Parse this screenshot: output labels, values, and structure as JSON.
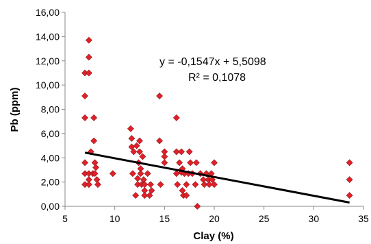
{
  "chart_data": {
    "type": "scatter",
    "xlabel": "Clay (%)",
    "ylabel": "Pb (ppm)",
    "xlim": [
      5,
      35
    ],
    "ylim": [
      0,
      16
    ],
    "x_ticks": [
      "5",
      "10",
      "15",
      "20",
      "25",
      "30",
      "35"
    ],
    "y_ticks": [
      "0,00",
      "2,00",
      "4,00",
      "6,00",
      "8,00",
      "10,00",
      "12,00",
      "14,00",
      "16,00"
    ],
    "grid": false,
    "legend": "none",
    "marker_color": "#e2202a",
    "marker_edge_color": "#8b1a1a",
    "series": [
      {
        "points": [
          [
            7.0,
            9.1
          ],
          [
            7.0,
            7.3
          ],
          [
            7.0,
            3.6
          ],
          [
            7.0,
            2.7
          ],
          [
            7.0,
            1.8
          ],
          [
            7.0,
            11.0
          ],
          [
            7.4,
            13.7
          ],
          [
            7.4,
            12.3
          ],
          [
            7.4,
            11.0
          ],
          [
            7.4,
            2.7
          ],
          [
            7.4,
            2.2
          ],
          [
            7.4,
            1.8
          ],
          [
            7.6,
            4.5
          ],
          [
            7.8,
            2.7
          ],
          [
            7.9,
            5.4
          ],
          [
            7.9,
            7.3
          ],
          [
            8.0,
            3.6
          ],
          [
            8.0,
            2.7
          ],
          [
            8.1,
            3.2
          ],
          [
            8.2,
            2.2
          ],
          [
            8.3,
            1.8
          ],
          [
            9.8,
            2.7
          ],
          [
            11.6,
            6.4
          ],
          [
            11.7,
            5.6
          ],
          [
            11.7,
            4.9
          ],
          [
            11.8,
            2.7
          ],
          [
            11.9,
            4.5
          ],
          [
            12.1,
            0.9
          ],
          [
            12.2,
            5.0
          ],
          [
            12.3,
            2.3
          ],
          [
            12.3,
            1.8
          ],
          [
            12.4,
            3.6
          ],
          [
            12.5,
            5.4
          ],
          [
            12.5,
            4.5
          ],
          [
            12.6,
            3.1
          ],
          [
            12.6,
            2.7
          ],
          [
            12.7,
            1.8
          ],
          [
            12.8,
            4.1
          ],
          [
            12.9,
            2.2
          ],
          [
            13.0,
            1.8
          ],
          [
            13.0,
            1.3
          ],
          [
            13.0,
            0.9
          ],
          [
            13.3,
            2.7
          ],
          [
            13.5,
            0.9
          ],
          [
            13.6,
            1.8
          ],
          [
            13.7,
            1.3
          ],
          [
            14.5,
            9.1
          ],
          [
            14.5,
            5.4
          ],
          [
            14.6,
            1.8
          ],
          [
            15.0,
            4.5
          ],
          [
            15.0,
            3.6
          ],
          [
            15.0,
            4.1
          ],
          [
            16.2,
            7.3
          ],
          [
            16.2,
            4.5
          ],
          [
            16.2,
            2.7
          ],
          [
            16.3,
            1.8
          ],
          [
            16.5,
            3.6
          ],
          [
            16.7,
            4.5
          ],
          [
            16.7,
            2.8
          ],
          [
            16.8,
            3.1
          ],
          [
            16.8,
            1.3
          ],
          [
            16.9,
            0.9
          ],
          [
            17.0,
            2.7
          ],
          [
            17.2,
            1.8
          ],
          [
            17.2,
            0.9
          ],
          [
            17.4,
            2.7
          ],
          [
            17.5,
            4.5
          ],
          [
            17.6,
            3.6
          ],
          [
            17.8,
            2.7
          ],
          [
            18.1,
            1.8
          ],
          [
            18.2,
            3.6
          ],
          [
            18.3,
            0.0
          ],
          [
            18.6,
            2.7
          ],
          [
            18.9,
            2.2
          ],
          [
            19.0,
            1.8
          ],
          [
            19.2,
            2.7
          ],
          [
            19.4,
            2.2
          ],
          [
            19.5,
            1.8
          ],
          [
            19.7,
            2.7
          ],
          [
            19.8,
            2.2
          ],
          [
            20.0,
            1.8
          ],
          [
            20.0,
            3.6
          ],
          [
            33.6,
            3.6
          ],
          [
            33.6,
            2.2
          ],
          [
            33.6,
            0.9
          ]
        ]
      }
    ],
    "trendline": {
      "slope": -0.1547,
      "intercept": 5.5098,
      "x_range": [
        7,
        33.6
      ],
      "color": "#000000"
    },
    "annotations": [
      "y = -0,1547x + 5,5098",
      "R² = 0,1078"
    ]
  }
}
